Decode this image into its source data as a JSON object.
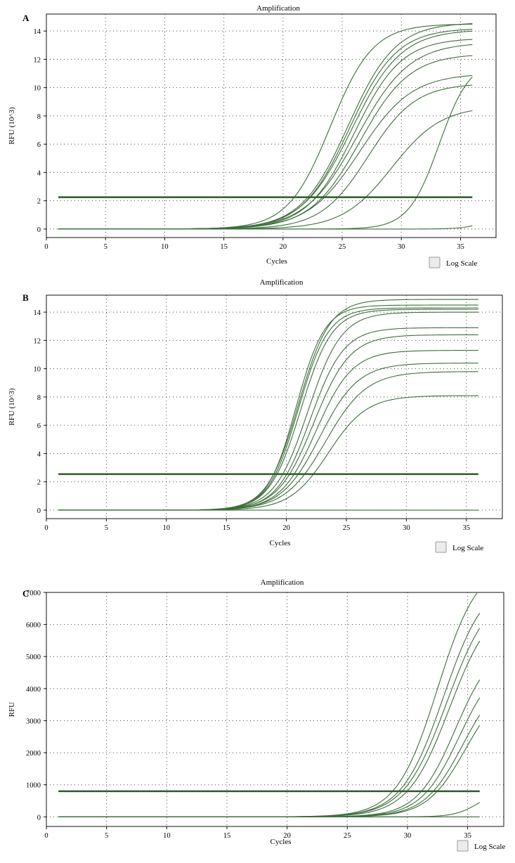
{
  "chart_data": [
    {
      "panel_label": "A",
      "type": "line",
      "title": "Amplification",
      "xlabel": "Cycles",
      "ylabel": "RFU (10^3)",
      "xlim": [
        0,
        38
      ],
      "ylim": [
        -0.6,
        15.2
      ],
      "xticks": [
        0,
        5,
        10,
        15,
        20,
        25,
        30,
        35
      ],
      "yticks": [
        0,
        2,
        4,
        6,
        8,
        10,
        12,
        14
      ],
      "grid": true,
      "threshold": 2.25,
      "log_scale_label": "Log Scale",
      "x_range": [
        1,
        36
      ],
      "curve_model": "sigmoid: y = max / (1 + exp(-(x - mid)/slope))",
      "series": [
        {
          "max": 14.5,
          "mid": 24.0,
          "slope": 1.8
        },
        {
          "max": 14.6,
          "mid": 25.5,
          "slope": 2.0
        },
        {
          "max": 14.2,
          "mid": 25.6,
          "slope": 2.0
        },
        {
          "max": 14.1,
          "mid": 25.8,
          "slope": 2.1
        },
        {
          "max": 13.5,
          "mid": 26.0,
          "slope": 2.0
        },
        {
          "max": 13.2,
          "mid": 26.3,
          "slope": 2.2
        },
        {
          "max": 12.4,
          "mid": 26.5,
          "slope": 2.1
        },
        {
          "max": 11.0,
          "mid": 26.5,
          "slope": 2.2
        },
        {
          "max": 10.3,
          "mid": 27.2,
          "slope": 2.0
        },
        {
          "max": 8.7,
          "mid": 29.2,
          "slope": 2.1
        },
        {
          "max": 12.0,
          "mid": 33.2,
          "slope": 1.3
        },
        {
          "max": 2.0,
          "mid": 38.0,
          "slope": 1.0
        }
      ]
    },
    {
      "panel_label": "B",
      "type": "line",
      "title": "Amplification",
      "xlabel": "Cycles",
      "ylabel": "RFU (10^3)",
      "xlim": [
        0,
        38
      ],
      "ylim": [
        -0.6,
        15.2
      ],
      "xticks": [
        0,
        5,
        10,
        15,
        20,
        25,
        30,
        35
      ],
      "yticks": [
        0,
        2,
        4,
        6,
        8,
        10,
        12,
        14
      ],
      "grid": true,
      "threshold": 2.55,
      "log_scale_label": "Log Scale",
      "x_range": [
        1,
        36
      ],
      "curve_model": "sigmoid: y = max / (1 + exp(-(x - mid)/slope))",
      "series": [
        {
          "max": 14.9,
          "mid": 21.0,
          "slope": 1.3
        },
        {
          "max": 14.5,
          "mid": 20.8,
          "slope": 1.2
        },
        {
          "max": 14.3,
          "mid": 21.0,
          "slope": 1.25
        },
        {
          "max": 14.2,
          "mid": 21.2,
          "slope": 1.3
        },
        {
          "max": 14.0,
          "mid": 21.8,
          "slope": 1.4
        },
        {
          "max": 12.9,
          "mid": 22.0,
          "slope": 1.4
        },
        {
          "max": 12.4,
          "mid": 22.3,
          "slope": 1.5
        },
        {
          "max": 11.3,
          "mid": 22.5,
          "slope": 1.5
        },
        {
          "max": 10.4,
          "mid": 22.8,
          "slope": 1.6
        },
        {
          "max": 9.8,
          "mid": 23.3,
          "slope": 1.7
        },
        {
          "max": 8.1,
          "mid": 23.5,
          "slope": 1.6
        },
        {
          "max": 0.0,
          "mid": 30.0,
          "slope": 1.0
        }
      ]
    },
    {
      "panel_label": "C",
      "type": "line",
      "title": "Amplification",
      "xlabel": "Cycles",
      "ylabel": "RFU",
      "xlim": [
        0,
        38
      ],
      "ylim": [
        -300,
        7000
      ],
      "xticks": [
        0,
        5,
        10,
        15,
        20,
        25,
        30,
        35
      ],
      "yticks": [
        0,
        1000,
        2000,
        3000,
        4000,
        5000,
        6000,
        7000
      ],
      "grid": true,
      "threshold": 800,
      "log_scale_label": "Log Scale",
      "x_range": [
        1,
        36
      ],
      "curve_model": "sigmoid: y = max / (1 + exp(-(x - mid)/slope))",
      "series": [
        {
          "max": 8000,
          "mid": 32.5,
          "slope": 1.7
        },
        {
          "max": 7500,
          "mid": 33.0,
          "slope": 1.75
        },
        {
          "max": 7200,
          "mid": 33.3,
          "slope": 1.8
        },
        {
          "max": 6800,
          "mid": 33.5,
          "slope": 1.75
        },
        {
          "max": 5500,
          "mid": 34.0,
          "slope": 1.6
        },
        {
          "max": 5000,
          "mid": 34.3,
          "slope": 1.6
        },
        {
          "max": 4500,
          "mid": 34.6,
          "slope": 1.6
        },
        {
          "max": 4200,
          "mid": 34.8,
          "slope": 1.6
        },
        {
          "max": 900,
          "mid": 36.0,
          "slope": 1.0
        },
        {
          "max": 0,
          "mid": 30.0,
          "slope": 1.0
        }
      ]
    }
  ],
  "colors": {
    "curve": "#3d6e3a",
    "threshold": "#2f5a2c",
    "grid": "#444444",
    "axis": "#111111"
  }
}
